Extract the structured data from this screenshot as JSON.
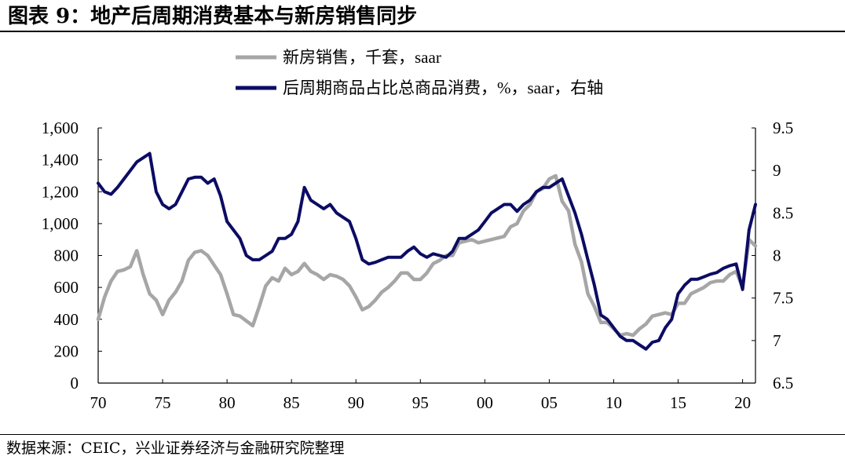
{
  "header": {
    "title": "图表 9：地产后周期消费基本与新房销售同步"
  },
  "footer": {
    "source": "数据来源：CEIC，兴业证券经济与金融研究院整理"
  },
  "chart_data": {
    "type": "line",
    "title": "图表 9：地产后周期消费基本与新房销售同步",
    "xlim": [
      1970,
      2021
    ],
    "x_ticks": [
      1970,
      1975,
      1980,
      1985,
      1990,
      1995,
      2000,
      2005,
      2010,
      2015,
      2020
    ],
    "x_tick_labels": [
      "70",
      "75",
      "80",
      "85",
      "90",
      "95",
      "00",
      "05",
      "10",
      "15",
      "20"
    ],
    "ylim_left": [
      0,
      1600
    ],
    "y_left_ticks": [
      0,
      200,
      400,
      600,
      800,
      1000,
      1200,
      1400,
      1600
    ],
    "y_left_tick_labels": [
      "0",
      "200",
      "400",
      "600",
      "800",
      "1,000",
      "1,200",
      "1,400",
      "1,600"
    ],
    "ylim_right": [
      6.5,
      9.5
    ],
    "y_right_ticks": [
      6.5,
      7,
      7.5,
      8,
      8.5,
      9,
      9.5
    ],
    "y_right_tick_labels": [
      "6.5",
      "7",
      "7.5",
      "8",
      "8.5",
      "9",
      "9.5"
    ],
    "grid": false,
    "legend_position": "top-left",
    "series": [
      {
        "name": "新房销售，千套，saar",
        "axis": "left",
        "color": "#a6a6a6",
        "x": [
          1970.0,
          1970.5,
          1971.0,
          1971.5,
          1972.0,
          1972.5,
          1973.0,
          1973.5,
          1974.0,
          1974.5,
          1975.0,
          1975.5,
          1976.0,
          1976.5,
          1977.0,
          1977.5,
          1978.0,
          1978.5,
          1979.0,
          1979.5,
          1980.0,
          1980.5,
          1981.0,
          1981.5,
          1982.0,
          1982.5,
          1983.0,
          1983.5,
          1984.0,
          1984.5,
          1985.0,
          1985.5,
          1986.0,
          1986.5,
          1987.0,
          1987.5,
          1988.0,
          1988.5,
          1989.0,
          1989.5,
          1990.0,
          1990.5,
          1991.0,
          1991.5,
          1992.0,
          1992.5,
          1993.0,
          1993.5,
          1994.0,
          1994.5,
          1995.0,
          1995.5,
          1996.0,
          1996.5,
          1997.0,
          1997.5,
          1998.0,
          1998.5,
          1999.0,
          1999.5,
          2000.0,
          2000.5,
          2001.0,
          2001.5,
          2002.0,
          2002.5,
          2003.0,
          2003.5,
          2004.0,
          2004.5,
          2005.0,
          2005.5,
          2006.0,
          2006.5,
          2007.0,
          2007.5,
          2008.0,
          2008.5,
          2009.0,
          2009.5,
          2010.0,
          2010.5,
          2011.0,
          2011.5,
          2012.0,
          2012.5,
          2013.0,
          2013.5,
          2014.0,
          2014.5,
          2015.0,
          2015.5,
          2016.0,
          2016.5,
          2017.0,
          2017.5,
          2018.0,
          2018.5,
          2019.0,
          2019.5,
          2020.0,
          2020.5,
          2021.0
        ],
        "values": [
          400,
          540,
          640,
          700,
          710,
          730,
          830,
          680,
          560,
          520,
          430,
          520,
          570,
          640,
          770,
          820,
          830,
          800,
          740,
          680,
          560,
          430,
          420,
          390,
          360,
          480,
          610,
          660,
          640,
          720,
          680,
          700,
          750,
          700,
          680,
          650,
          680,
          670,
          650,
          610,
          540,
          460,
          480,
          520,
          570,
          600,
          640,
          690,
          690,
          650,
          650,
          690,
          750,
          770,
          800,
          800,
          880,
          890,
          900,
          880,
          890,
          900,
          910,
          920,
          980,
          1000,
          1080,
          1120,
          1200,
          1220,
          1280,
          1300,
          1140,
          1080,
          870,
          760,
          560,
          480,
          380,
          380,
          340,
          300,
          310,
          300,
          340,
          370,
          420,
          430,
          440,
          430,
          500,
          500,
          560,
          580,
          600,
          630,
          640,
          640,
          680,
          700,
          600,
          900,
          860
        ]
      },
      {
        "name": "后周期商品占比总商品消费，%，saar，右轴",
        "axis": "right",
        "color": "#0c0c64",
        "x": [
          1970.0,
          1970.5,
          1971.0,
          1971.5,
          1972.0,
          1972.5,
          1973.0,
          1973.5,
          1974.0,
          1974.5,
          1975.0,
          1975.5,
          1976.0,
          1976.5,
          1977.0,
          1977.5,
          1978.0,
          1978.5,
          1979.0,
          1979.5,
          1980.0,
          1980.5,
          1981.0,
          1981.5,
          1982.0,
          1982.5,
          1983.0,
          1983.5,
          1984.0,
          1984.5,
          1985.0,
          1985.5,
          1986.0,
          1986.5,
          1987.0,
          1987.5,
          1988.0,
          1988.5,
          1989.0,
          1989.5,
          1990.0,
          1990.5,
          1991.0,
          1991.5,
          1992.0,
          1992.5,
          1993.0,
          1993.5,
          1994.0,
          1994.5,
          1995.0,
          1995.5,
          1996.0,
          1996.5,
          1997.0,
          1997.5,
          1998.0,
          1998.5,
          1999.0,
          1999.5,
          2000.0,
          2000.5,
          2001.0,
          2001.5,
          2002.0,
          2002.5,
          2003.0,
          2003.5,
          2004.0,
          2004.5,
          2005.0,
          2005.5,
          2006.0,
          2006.5,
          2007.0,
          2007.5,
          2008.0,
          2008.5,
          2009.0,
          2009.5,
          2010.0,
          2010.5,
          2011.0,
          2011.5,
          2012.0,
          2012.5,
          2013.0,
          2013.5,
          2014.0,
          2014.5,
          2015.0,
          2015.5,
          2016.0,
          2016.5,
          2017.0,
          2017.5,
          2018.0,
          2018.5,
          2019.0,
          2019.5,
          2020.0,
          2020.5,
          2021.0
        ],
        "values": [
          8.85,
          8.75,
          8.72,
          8.8,
          8.9,
          9.0,
          9.1,
          9.15,
          9.2,
          8.75,
          8.6,
          8.55,
          8.6,
          8.75,
          8.9,
          8.92,
          8.92,
          8.85,
          8.9,
          8.7,
          8.4,
          8.3,
          8.2,
          8.0,
          7.95,
          7.95,
          8.0,
          8.05,
          8.2,
          8.2,
          8.25,
          8.4,
          8.8,
          8.65,
          8.6,
          8.55,
          8.6,
          8.5,
          8.45,
          8.4,
          8.2,
          7.95,
          7.9,
          7.92,
          7.95,
          7.98,
          7.98,
          7.98,
          8.05,
          8.1,
          8.02,
          7.98,
          8.02,
          8.0,
          7.98,
          8.05,
          8.2,
          8.2,
          8.25,
          8.3,
          8.4,
          8.5,
          8.55,
          8.6,
          8.6,
          8.52,
          8.6,
          8.65,
          8.75,
          8.8,
          8.8,
          8.85,
          8.9,
          8.7,
          8.5,
          8.25,
          7.95,
          7.65,
          7.3,
          7.25,
          7.15,
          7.05,
          7.0,
          7.0,
          6.95,
          6.9,
          6.98,
          7.0,
          7.15,
          7.25,
          7.55,
          7.65,
          7.72,
          7.72,
          7.75,
          7.78,
          7.8,
          7.85,
          7.88,
          7.9,
          7.6,
          8.3,
          8.6
        ]
      }
    ]
  }
}
